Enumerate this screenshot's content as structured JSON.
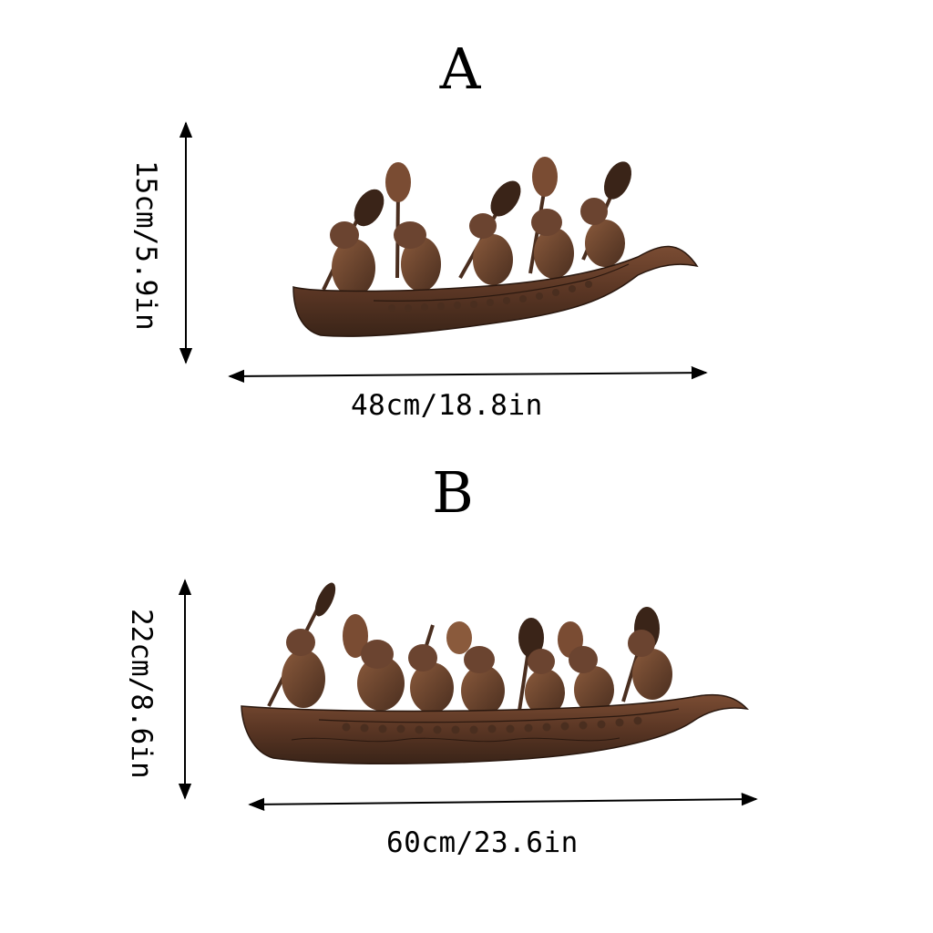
{
  "variants": [
    {
      "label": "A",
      "height_dimension": "15cm/5.9in",
      "width_dimension": "48cm/18.8in",
      "rowers": 5
    },
    {
      "label": "B",
      "height_dimension": "22cm/8.6in",
      "width_dimension": "60cm/23.6in",
      "rowers": 7
    }
  ],
  "colors": {
    "wood_dark": "#3a2418",
    "wood_mid": "#6b4430",
    "wood_light": "#8a5a3c",
    "arrow": "#000000",
    "background": "#ffffff"
  }
}
